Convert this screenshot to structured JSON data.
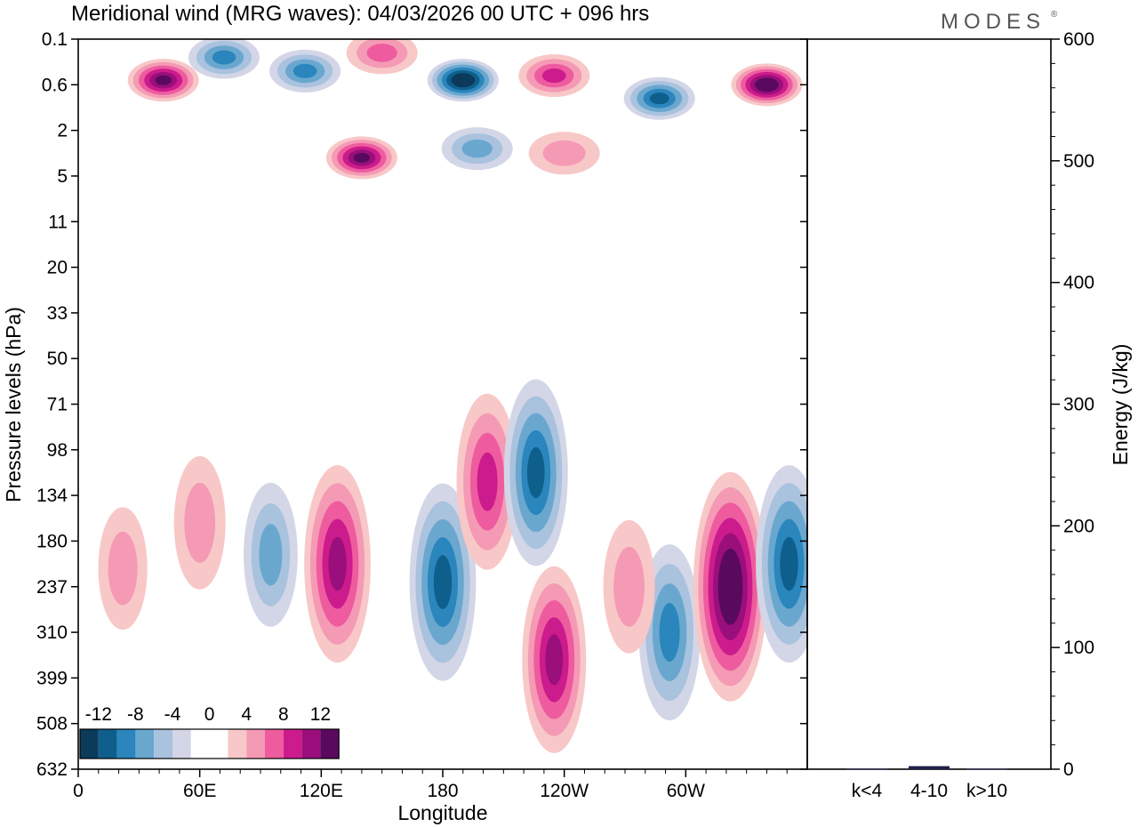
{
  "title": "Meridional wind (MRG waves):  04/03/2026  00 UTC  + 096 hrs",
  "logo": "MODES",
  "logo_mark": "®",
  "colors": {
    "neg": [
      "#0b3a5a",
      "#0f5f8c",
      "#2a86bc",
      "#6aa7cf",
      "#a9c2de",
      "#d3d6e7"
    ],
    "pos": [
      "#f8c8c8",
      "#f59ab5",
      "#ee5c9f",
      "#cc1b8c",
      "#9a0f7c",
      "#5a0a5e"
    ],
    "bar": "#20204a"
  },
  "chart_data": [
    {
      "type": "heatmap",
      "title": "Meridional wind (MRG waves)",
      "xlabel": "Longitude",
      "ylabel": "Pressure levels (hPa)",
      "x_ticks": [
        "0",
        "60E",
        "120E",
        "180",
        "120W",
        "60W"
      ],
      "y_ticks": [
        "0.1",
        "0.6",
        "2",
        "5",
        "11",
        "20",
        "33",
        "50",
        "71",
        "98",
        "134",
        "180",
        "237",
        "310",
        "399",
        "508",
        "632"
      ],
      "colorbar_labels": [
        "-12",
        "-8",
        "-4",
        "0",
        "4",
        "8",
        "12"
      ],
      "contour_levels": [
        -14,
        -12,
        -10,
        -8,
        -6,
        -4,
        -2,
        2,
        4,
        6,
        8,
        10,
        12,
        14
      ],
      "anomalies": [
        {
          "lon": 72,
          "level_index": 0.4,
          "value": -9
        },
        {
          "lon": 112,
          "level_index": 0.7,
          "value": -8
        },
        {
          "lon": 42,
          "level_index": 0.9,
          "value": 13
        },
        {
          "lon": 150,
          "level_index": 0.3,
          "value": 6
        },
        {
          "lon": 190,
          "level_index": 0.9,
          "value": -14
        },
        {
          "lon": 235,
          "level_index": 0.8,
          "value": 9
        },
        {
          "lon": 287,
          "level_index": 1.3,
          "value": -11
        },
        {
          "lon": 340,
          "level_index": 1.0,
          "value": 15
        },
        {
          "lon": 140,
          "level_index": 2.6,
          "value": 13
        },
        {
          "lon": 197,
          "level_index": 2.4,
          "value": -7
        },
        {
          "lon": 240,
          "level_index": 2.5,
          "value": 4
        },
        {
          "lon": 95,
          "level_index": 11.3,
          "value": -6
        },
        {
          "lon": 128,
          "level_index": 11.5,
          "value": 11
        },
        {
          "lon": 180,
          "level_index": 11.9,
          "value": -11
        },
        {
          "lon": 202,
          "level_index": 9.7,
          "value": 9
        },
        {
          "lon": 226,
          "level_index": 9.5,
          "value": -10
        },
        {
          "lon": 235,
          "level_index": 13.6,
          "value": 10
        },
        {
          "lon": 292,
          "level_index": 13.0,
          "value": -9
        },
        {
          "lon": 322,
          "level_index": 12.0,
          "value": 14
        },
        {
          "lon": 351,
          "level_index": 11.5,
          "value": -11
        },
        {
          "lon": 60,
          "level_index": 10.6,
          "value": 5
        },
        {
          "lon": 22,
          "level_index": 11.6,
          "value": 4
        },
        {
          "lon": 272,
          "level_index": 12.0,
          "value": 5
        }
      ]
    },
    {
      "type": "bar",
      "ylabel": "Energy (J/kg)",
      "categories": [
        "k<4",
        "4-10",
        "k>10"
      ],
      "values": [
        0.3,
        2.5,
        0.4
      ],
      "ylim": [
        0,
        600
      ],
      "y_ticks": [
        "0",
        "100",
        "200",
        "300",
        "400",
        "500",
        "600"
      ]
    }
  ]
}
